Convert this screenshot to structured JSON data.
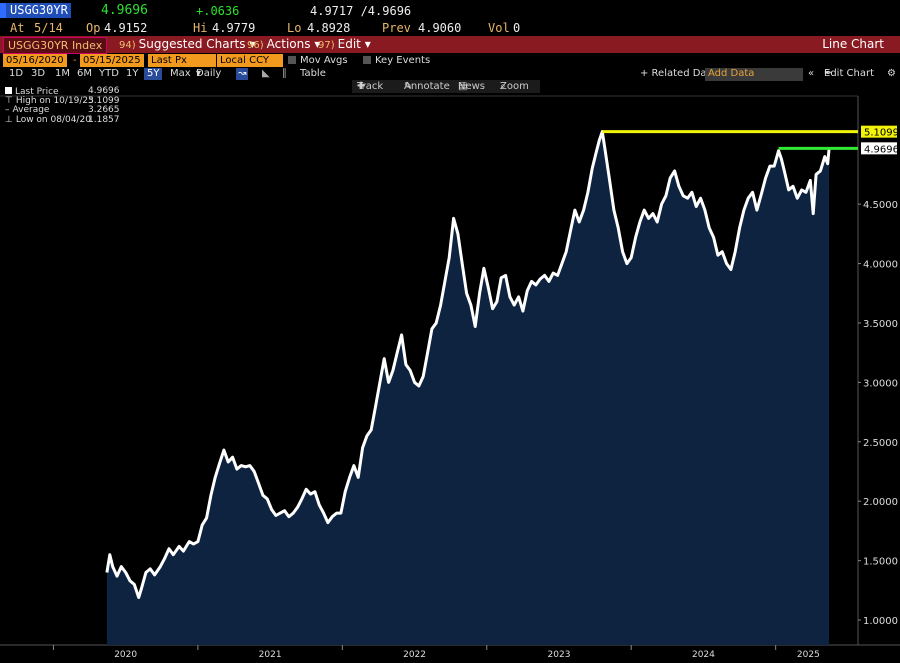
{
  "header": {
    "ticker": "USGG30YR",
    "last": "4.9696",
    "change": "+.0636",
    "bid_ask": "4.9717 /4.9696",
    "at_label": "At",
    "at_value": "5/14",
    "op_label": "Op",
    "op_value": "4.9152",
    "hi_label": "Hi",
    "hi_value": "4.9779",
    "lo_label": "Lo",
    "lo_value": "4.8928",
    "prev_label": "Prev",
    "prev_value": "4.9060",
    "vol_label": "Vol",
    "vol_value": "0"
  },
  "menubar": {
    "index": "USGG30YR Index",
    "suggested": "Suggested Charts",
    "suggested_key": "94)",
    "actions": "Actions",
    "actions_key": "96)",
    "edit": "Edit",
    "edit_key": "97)",
    "title": "Line Chart"
  },
  "controls": {
    "start_date": "05/16/2020",
    "end_date": "05/15/2025",
    "field": "Last Px",
    "currency": "Local CCY",
    "mov_avgs": "Mov Avgs",
    "key_events": "Key Events",
    "related": "+ Related Dat",
    "add_data": "Add Data",
    "edit_chart": "Edit Chart"
  },
  "periods": [
    "1D",
    "3D",
    "1M",
    "6M",
    "YTD",
    "1Y",
    "5Y",
    "Max"
  ],
  "selected_period": "5Y",
  "frequency": "Daily",
  "table_label": "Table",
  "tools": {
    "track": "Track",
    "annotate": "Annotate",
    "news": "News",
    "zoom": "Zoom"
  },
  "legend": {
    "last_label": "Last Price",
    "last_value": "4.9696",
    "high_label": "High on 10/19/23",
    "high_value": "5.1099",
    "avg_label": "Average",
    "avg_value": "3.2665",
    "low_label": "Low on 08/04/20",
    "low_value": "1.1857"
  },
  "colors": {
    "line": "#ffffff",
    "fill": "#0e2340",
    "high_line": "#f2f20a",
    "last_line": "#33e833",
    "menubar": "#8a1a21",
    "accent": "#f29a1e"
  },
  "chart_data": {
    "type": "area",
    "series_name": "USGG30YR Index Last Price",
    "x_start": "2020-05-16",
    "x_end": "2025-05-15",
    "points": [
      [
        2020.37,
        1.4
      ],
      [
        2020.39,
        1.55
      ],
      [
        2020.41,
        1.45
      ],
      [
        2020.44,
        1.37
      ],
      [
        2020.47,
        1.45
      ],
      [
        2020.5,
        1.4
      ],
      [
        2020.53,
        1.33
      ],
      [
        2020.56,
        1.3
      ],
      [
        2020.59,
        1.19
      ],
      [
        2020.61,
        1.27
      ],
      [
        2020.64,
        1.4
      ],
      [
        2020.67,
        1.43
      ],
      [
        2020.7,
        1.38
      ],
      [
        2020.74,
        1.45
      ],
      [
        2020.77,
        1.52
      ],
      [
        2020.8,
        1.6
      ],
      [
        2020.83,
        1.55
      ],
      [
        2020.87,
        1.62
      ],
      [
        2020.9,
        1.58
      ],
      [
        2020.94,
        1.66
      ],
      [
        2020.97,
        1.64
      ],
      [
        2021.0,
        1.66
      ],
      [
        2021.03,
        1.8
      ],
      [
        2021.06,
        1.86
      ],
      [
        2021.09,
        2.05
      ],
      [
        2021.12,
        2.2
      ],
      [
        2021.15,
        2.32
      ],
      [
        2021.18,
        2.43
      ],
      [
        2021.21,
        2.33
      ],
      [
        2021.24,
        2.37
      ],
      [
        2021.27,
        2.27
      ],
      [
        2021.3,
        2.3
      ],
      [
        2021.33,
        2.29
      ],
      [
        2021.36,
        2.3
      ],
      [
        2021.39,
        2.25
      ],
      [
        2021.42,
        2.15
      ],
      [
        2021.45,
        2.05
      ],
      [
        2021.48,
        2.02
      ],
      [
        2021.51,
        1.93
      ],
      [
        2021.54,
        1.88
      ],
      [
        2021.57,
        1.9
      ],
      [
        2021.6,
        1.92
      ],
      [
        2021.63,
        1.87
      ],
      [
        2021.66,
        1.9
      ],
      [
        2021.69,
        1.95
      ],
      [
        2021.72,
        2.02
      ],
      [
        2021.75,
        2.1
      ],
      [
        2021.78,
        2.06
      ],
      [
        2021.81,
        2.08
      ],
      [
        2021.84,
        1.97
      ],
      [
        2021.87,
        1.9
      ],
      [
        2021.9,
        1.82
      ],
      [
        2021.93,
        1.87
      ],
      [
        2021.96,
        1.9
      ],
      [
        2021.99,
        1.9
      ],
      [
        2022.02,
        2.08
      ],
      [
        2022.05,
        2.2
      ],
      [
        2022.08,
        2.3
      ],
      [
        2022.11,
        2.2
      ],
      [
        2022.14,
        2.45
      ],
      [
        2022.17,
        2.55
      ],
      [
        2022.2,
        2.6
      ],
      [
        2022.23,
        2.8
      ],
      [
        2022.26,
        3.0
      ],
      [
        2022.29,
        3.2
      ],
      [
        2022.32,
        3.0
      ],
      [
        2022.35,
        3.1
      ],
      [
        2022.38,
        3.25
      ],
      [
        2022.41,
        3.4
      ],
      [
        2022.44,
        3.15
      ],
      [
        2022.47,
        3.1
      ],
      [
        2022.5,
        3.0
      ],
      [
        2022.53,
        2.97
      ],
      [
        2022.56,
        3.05
      ],
      [
        2022.59,
        3.25
      ],
      [
        2022.62,
        3.45
      ],
      [
        2022.65,
        3.5
      ],
      [
        2022.68,
        3.65
      ],
      [
        2022.71,
        3.85
      ],
      [
        2022.74,
        4.05
      ],
      [
        2022.77,
        4.38
      ],
      [
        2022.8,
        4.25
      ],
      [
        2022.83,
        4.0
      ],
      [
        2022.86,
        3.75
      ],
      [
        2022.89,
        3.65
      ],
      [
        2022.92,
        3.47
      ],
      [
        2022.95,
        3.75
      ],
      [
        2022.98,
        3.96
      ],
      [
        2023.01,
        3.8
      ],
      [
        2023.04,
        3.62
      ],
      [
        2023.07,
        3.68
      ],
      [
        2023.1,
        3.88
      ],
      [
        2023.13,
        3.9
      ],
      [
        2023.16,
        3.72
      ],
      [
        2023.19,
        3.65
      ],
      [
        2023.22,
        3.72
      ],
      [
        2023.25,
        3.6
      ],
      [
        2023.28,
        3.77
      ],
      [
        2023.31,
        3.85
      ],
      [
        2023.34,
        3.82
      ],
      [
        2023.37,
        3.87
      ],
      [
        2023.4,
        3.9
      ],
      [
        2023.43,
        3.85
      ],
      [
        2023.46,
        3.92
      ],
      [
        2023.49,
        3.9
      ],
      [
        2023.52,
        4.0
      ],
      [
        2023.55,
        4.1
      ],
      [
        2023.58,
        4.28
      ],
      [
        2023.61,
        4.45
      ],
      [
        2023.64,
        4.35
      ],
      [
        2023.67,
        4.45
      ],
      [
        2023.7,
        4.6
      ],
      [
        2023.73,
        4.8
      ],
      [
        2023.76,
        4.95
      ],
      [
        2023.78,
        5.04
      ],
      [
        2023.8,
        5.11
      ],
      [
        2023.82,
        4.95
      ],
      [
        2023.85,
        4.7
      ],
      [
        2023.88,
        4.45
      ],
      [
        2023.91,
        4.3
      ],
      [
        2023.94,
        4.1
      ],
      [
        2023.97,
        4.0
      ],
      [
        2024.0,
        4.05
      ],
      [
        2024.03,
        4.22
      ],
      [
        2024.06,
        4.35
      ],
      [
        2024.09,
        4.45
      ],
      [
        2024.12,
        4.38
      ],
      [
        2024.15,
        4.42
      ],
      [
        2024.18,
        4.35
      ],
      [
        2024.21,
        4.5
      ],
      [
        2024.24,
        4.57
      ],
      [
        2024.27,
        4.72
      ],
      [
        2024.3,
        4.78
      ],
      [
        2024.33,
        4.65
      ],
      [
        2024.36,
        4.57
      ],
      [
        2024.39,
        4.55
      ],
      [
        2024.42,
        4.6
      ],
      [
        2024.45,
        4.48
      ],
      [
        2024.48,
        4.55
      ],
      [
        2024.51,
        4.45
      ],
      [
        2024.54,
        4.3
      ],
      [
        2024.57,
        4.22
      ],
      [
        2024.6,
        4.07
      ],
      [
        2024.63,
        4.1
      ],
      [
        2024.66,
        4.0
      ],
      [
        2024.69,
        3.95
      ],
      [
        2024.72,
        4.1
      ],
      [
        2024.75,
        4.3
      ],
      [
        2024.78,
        4.45
      ],
      [
        2024.81,
        4.55
      ],
      [
        2024.84,
        4.6
      ],
      [
        2024.87,
        4.45
      ],
      [
        2024.9,
        4.58
      ],
      [
        2024.93,
        4.72
      ],
      [
        2024.96,
        4.82
      ],
      [
        2024.99,
        4.82
      ],
      [
        2025.02,
        4.95
      ],
      [
        2025.04,
        4.88
      ],
      [
        2025.06,
        4.78
      ],
      [
        2025.09,
        4.62
      ],
      [
        2025.12,
        4.65
      ],
      [
        2025.15,
        4.55
      ],
      [
        2025.18,
        4.62
      ],
      [
        2025.21,
        4.6
      ],
      [
        2025.24,
        4.7
      ],
      [
        2025.26,
        4.42
      ],
      [
        2025.28,
        4.75
      ],
      [
        2025.31,
        4.78
      ],
      [
        2025.34,
        4.9
      ],
      [
        2025.36,
        4.84
      ],
      [
        2025.37,
        4.97
      ]
    ],
    "x_ticks": [
      "2020",
      "2021",
      "2022",
      "2023",
      "2024",
      "2025"
    ],
    "x_tick_values": [
      2020.0,
      2021.0,
      2022.0,
      2023.0,
      2024.0,
      2025.0
    ],
    "y_ticks": [
      "1.0000",
      "1.5000",
      "2.0000",
      "2.5000",
      "3.0000",
      "3.5000",
      "4.0000",
      "4.5000"
    ],
    "y_tick_values": [
      1.0,
      1.5,
      2.0,
      2.5,
      3.0,
      3.5,
      4.0,
      4.5
    ],
    "xlim": [
      2019.63,
      2025.57
    ],
    "ylim": [
      0.79,
      5.41
    ],
    "high_value": 5.1099,
    "high_label": "5.1099",
    "high_from": 2023.8,
    "last_value": 4.9696,
    "last_label": "4.9696",
    "last_from": 2025.02
  }
}
